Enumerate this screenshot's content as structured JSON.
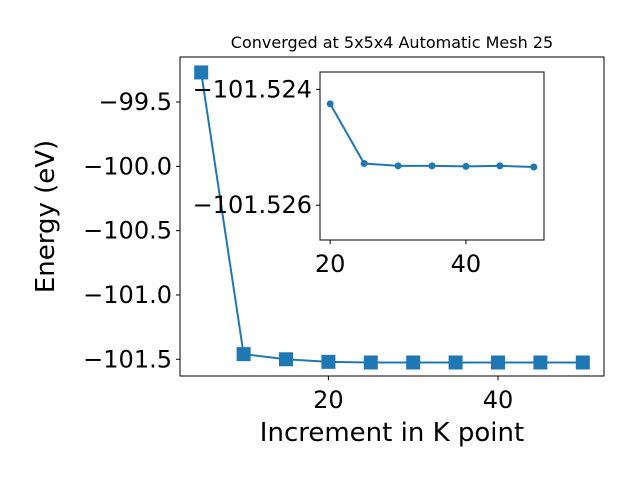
{
  "chart_data": [
    {
      "type": "line",
      "title": "Converged at 5x5x4 Automatic Mesh 25",
      "xlabel": "Increment in K point",
      "ylabel": "Energy (eV)",
      "xlim": [
        2.5,
        52.5
      ],
      "ylim": [
        -101.63,
        -99.15
      ],
      "x_ticks": [
        20,
        40
      ],
      "y_ticks": [
        -99.5,
        -100.0,
        -100.5,
        -101.0,
        -101.5
      ],
      "x_tick_labels": [
        "20",
        "40"
      ],
      "y_tick_labels": [
        "−99.5",
        "−100.0",
        "−100.5",
        "−101.0",
        "−101.5"
      ],
      "marker": "square",
      "color": "#1f77b4",
      "series": [
        {
          "x": [
            5,
            10,
            15,
            20,
            25,
            30,
            35,
            40,
            45,
            50
          ],
          "y": [
            -99.27,
            -101.46,
            -101.5,
            -101.52,
            -101.525,
            -101.525,
            -101.525,
            -101.525,
            -101.525,
            -101.525
          ]
        }
      ]
    },
    {
      "type": "line",
      "title": "",
      "xlim": [
        18.5,
        51.5
      ],
      "ylim": [
        -101.5266,
        -101.5237
      ],
      "x_ticks": [
        20,
        40
      ],
      "y_ticks": [
        -101.526,
        -101.524
      ],
      "x_tick_labels": [
        "20",
        "40"
      ],
      "y_tick_labels": [
        "−101.526",
        "−101.524"
      ],
      "marker": "circle",
      "color": "#1f77b4",
      "series": [
        {
          "x": [
            20,
            25,
            30,
            35,
            40,
            45,
            50
          ],
          "y": [
            -101.52425,
            -101.52528,
            -101.52532,
            -101.52532,
            -101.52533,
            -101.52532,
            -101.52534
          ]
        }
      ]
    }
  ]
}
